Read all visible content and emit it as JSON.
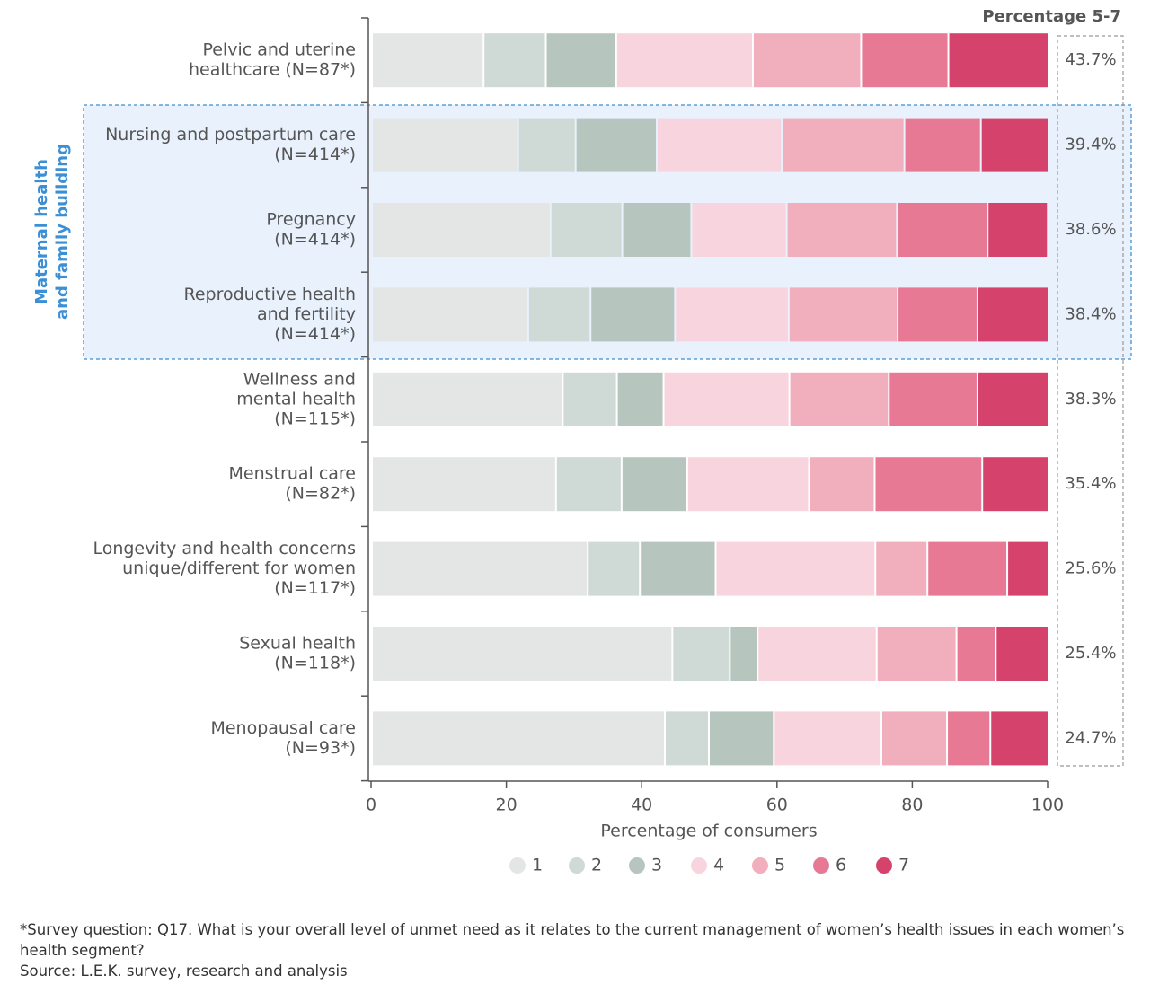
{
  "chart_data": {
    "type": "stacked-barh",
    "categories": [
      [
        "Pelvic and uterine",
        "healthcare (N=87*)"
      ],
      [
        "Nursing and postpartum care",
        "(N=414*)"
      ],
      [
        "Pregnancy",
        "(N=414*)"
      ],
      [
        "Reproductive health",
        "and fertility",
        "(N=414*)"
      ],
      [
        "Wellness and",
        "mental health",
        "(N=115*)"
      ],
      [
        "Menstrual care",
        "(N=82*)"
      ],
      [
        "Longevity and health concerns",
        "unique/different for women",
        "(N=117*)"
      ],
      [
        "Sexual health",
        "(N=118*)"
      ],
      [
        "Menopausal care",
        "(N=93*)"
      ]
    ],
    "series": [
      {
        "name": "1",
        "color": "#e3e6e4",
        "values": [
          16.5,
          21.6,
          26.4,
          23.1,
          28.2,
          27.2,
          31.9,
          44.4,
          43.3
        ]
      },
      {
        "name": "2",
        "color": "#cfd9d5",
        "values": [
          9.2,
          8.5,
          10.6,
          9.2,
          8.0,
          9.7,
          7.7,
          8.5,
          6.5
        ]
      },
      {
        "name": "3",
        "color": "#b6c6bf",
        "values": [
          10.4,
          12.0,
          10.2,
          12.5,
          6.9,
          9.7,
          11.2,
          4.1,
          9.6
        ]
      },
      {
        "name": "4",
        "color": "#f8d4de",
        "values": [
          20.2,
          18.5,
          14.1,
          16.8,
          18.6,
          18.0,
          23.6,
          17.6,
          15.9
        ]
      },
      {
        "name": "5",
        "color": "#f1aebc",
        "values": [
          16.0,
          18.1,
          16.3,
          16.1,
          14.7,
          9.7,
          7.7,
          11.8,
          9.7
        ]
      },
      {
        "name": "6",
        "color": "#e87994",
        "values": [
          12.9,
          11.3,
          13.4,
          11.8,
          13.1,
          15.9,
          11.8,
          5.8,
          6.4
        ]
      },
      {
        "name": "7",
        "color": "#d5436d",
        "values": [
          14.8,
          10.0,
          8.9,
          10.5,
          10.5,
          9.8,
          6.1,
          7.8,
          8.6
        ]
      }
    ],
    "totals": {
      "title": "Percentage 5-7",
      "values": [
        43.7,
        39.4,
        38.6,
        38.4,
        38.3,
        35.4,
        25.6,
        25.4,
        24.7
      ],
      "value_labels": [
        "43.7%",
        "39.4%",
        "38.6%",
        "38.4%",
        "38.3%",
        "35.4%",
        "25.6%",
        "25.4%",
        "24.7%"
      ]
    },
    "group_label": [
      "Maternal health",
      "and family building"
    ],
    "xlabel": "Percentage of consumers",
    "xlim": [
      0,
      100
    ],
    "xticks": [
      0,
      20,
      40,
      60,
      80,
      100
    ]
  },
  "footnote": "*Survey question: Q17. What is your overall level of unmet need as it relates to the current management of women’s health issues in each women’s health segment?",
  "source": "Source: L.E.K. survey, research and analysis"
}
